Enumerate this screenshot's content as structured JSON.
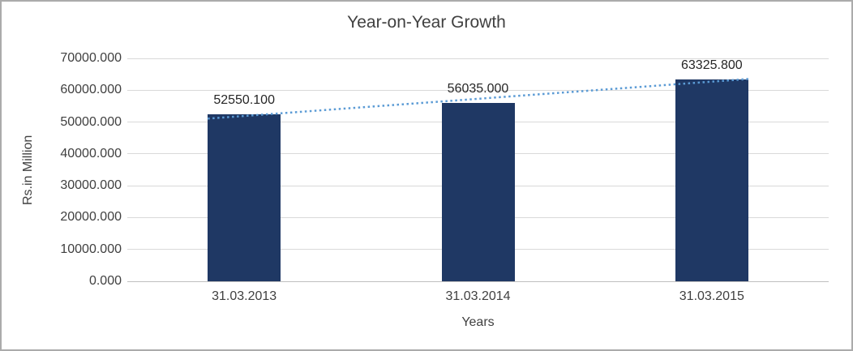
{
  "chart_data": {
    "type": "bar",
    "title": "Year-on-Year Growth",
    "xlabel": "Years",
    "ylabel": "Rs.in Million",
    "categories": [
      "31.03.2013",
      "31.03.2014",
      "31.03.2015"
    ],
    "values": [
      52550.1,
      56035.0,
      63325.8
    ],
    "data_labels": [
      "52550.100",
      "56035.000",
      "63325.800"
    ],
    "ylim": [
      0,
      70000
    ],
    "ytick_step": 10000,
    "ytick_labels": [
      "0.000",
      "10000.000",
      "20000.000",
      "30000.000",
      "40000.000",
      "50000.000",
      "60000.000",
      "70000.000"
    ],
    "grid": true,
    "legend": "none",
    "trendline": "linear-dotted",
    "colors": {
      "bar": "#1F3864",
      "trendline": "#5B9BD5",
      "gridline": "#D9D9D9",
      "axis": "#BFBFBF",
      "text": "#404040"
    }
  }
}
